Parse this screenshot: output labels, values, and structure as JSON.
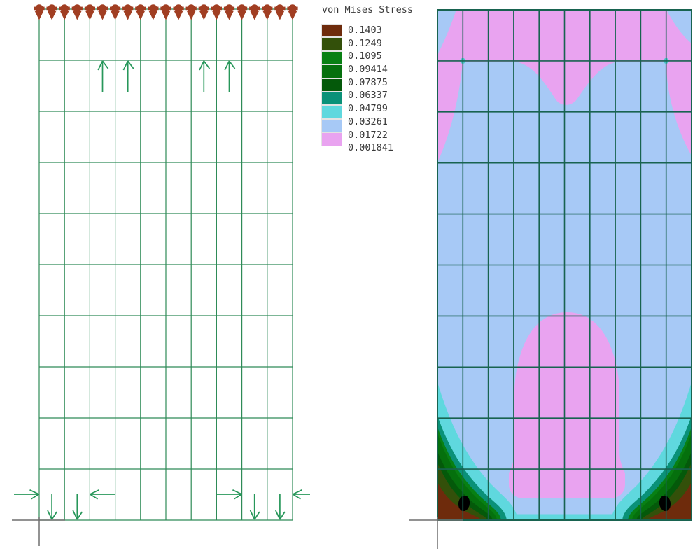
{
  "legend": {
    "title": "von Mises Stress",
    "values": [
      "0.1403",
      "0.1249",
      "0.1095",
      "0.09414",
      "0.07875",
      "0.06337",
      "0.04799",
      "0.03261",
      "0.01722",
      "0.001841"
    ],
    "colors": [
      "#6E2B0C",
      "#33500A",
      "#088013",
      "#05700D",
      "#04590A",
      "#0A9178",
      "#5FD8DE",
      "#A7C9F6",
      "#E9A3F0"
    ]
  },
  "chart_data": {
    "type": "heatmap",
    "title": "von Mises Stress",
    "legend_levels": [
      0.1403,
      0.1249,
      0.1095,
      0.09414,
      0.07875,
      0.06337,
      0.04799,
      0.03261,
      0.01722,
      0.001841
    ],
    "legend_colors": [
      "#6E2B0C",
      "#33500A",
      "#088013",
      "#05700D",
      "#04590A",
      "#0A9178",
      "#5FD8DE",
      "#A7C9F6",
      "#E9A3F0"
    ],
    "mesh": {
      "rows": 10,
      "columns": 10
    },
    "panels": [
      {
        "name": "mesh-and-boundary-conditions",
        "description": "10x10 finite element mesh drawn in green; 21 brown pin/roller support symbols along the top edge; 4 upward load arrows just below the first interior horizontal line (columns 3,4,7,8); bottom edge loads: 4 downward arrows (columns 1,2,9,10) and 4 horizontal arrows (inward at both outer edges, outward at interior nodes); gray origin axis cross at the bottom-left corner"
      },
      {
        "name": "von-mises-stress-contour",
        "description": "Contour plot on the same 10x10 mesh; lowest-stress pink band along the top edge with blue wedges at the two top corners and a V-shaped pink dip at mid-width; large pink low-stress lobe in the lower center ending in a rounded block above the bottom edge; field mostly light blue; high-stress concentrations at both bottom corners with nested bands cyan, teal, greens, olive, brown and a black peak spot in each corner; gray origin axis cross at the bottom-left corner"
      }
    ],
    "annotations": {
      "top_supports_count": 21,
      "upward_arrow_count": 4,
      "downward_arrow_count": 4,
      "horizontal_arrow_count": 4,
      "max_stress_spots": 2
    }
  }
}
